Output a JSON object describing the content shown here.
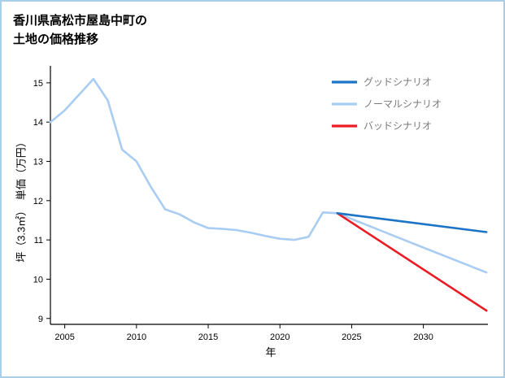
{
  "title": {
    "line1": "香川県高松市屋島中町の",
    "line2": "土地の価格推移"
  },
  "chart_data": {
    "type": "line",
    "title": "香川県高松市屋島中町の土地の価格推移",
    "xlabel": "年",
    "ylabel": "坪（3.3㎡）　単価（万円）",
    "xlim": [
      2004,
      2034.5
    ],
    "ylim": [
      8.85,
      15.35
    ],
    "xticks": [
      2005,
      2010,
      2015,
      2020,
      2025,
      2030
    ],
    "yticks": [
      9,
      10,
      11,
      12,
      13,
      14,
      15
    ],
    "grid": false,
    "legend_position": "upper-right",
    "legend": [
      {
        "id": "good",
        "label": "グッドシナリオ",
        "color": "#1b74c5"
      },
      {
        "id": "normal",
        "label": "ノーマルシナリオ",
        "color": "#a9cdf2"
      },
      {
        "id": "bad",
        "label": "バッドシナリオ",
        "color": "#ea1d25"
      }
    ],
    "series": [
      {
        "name": "historical-price",
        "color": "#a9cdf2",
        "x": [
          2004,
          2005,
          2006,
          2007,
          2008,
          2009,
          2010,
          2011,
          2012,
          2013,
          2014,
          2015,
          2016,
          2017,
          2018,
          2019,
          2020,
          2021,
          2022,
          2023,
          2024
        ],
        "y": [
          14.0,
          14.3,
          14.7,
          15.1,
          14.55,
          13.3,
          13.0,
          12.35,
          11.78,
          11.65,
          11.45,
          11.3,
          11.28,
          11.25,
          11.18,
          11.1,
          11.03,
          11.0,
          11.08,
          11.7,
          11.68
        ]
      },
      {
        "name": "normal-scenario",
        "color": "#a9cdf2",
        "x": [
          2024,
          2029,
          2034.4
        ],
        "y": [
          11.68,
          10.95,
          10.17
        ]
      },
      {
        "name": "bad-scenario",
        "color": "#ea1d25",
        "x": [
          2024,
          2034.4
        ],
        "y": [
          11.68,
          9.2
        ]
      },
      {
        "name": "good-scenario",
        "color": "#1b74c5",
        "x": [
          2024,
          2034.4
        ],
        "y": [
          11.68,
          11.2
        ]
      }
    ]
  }
}
